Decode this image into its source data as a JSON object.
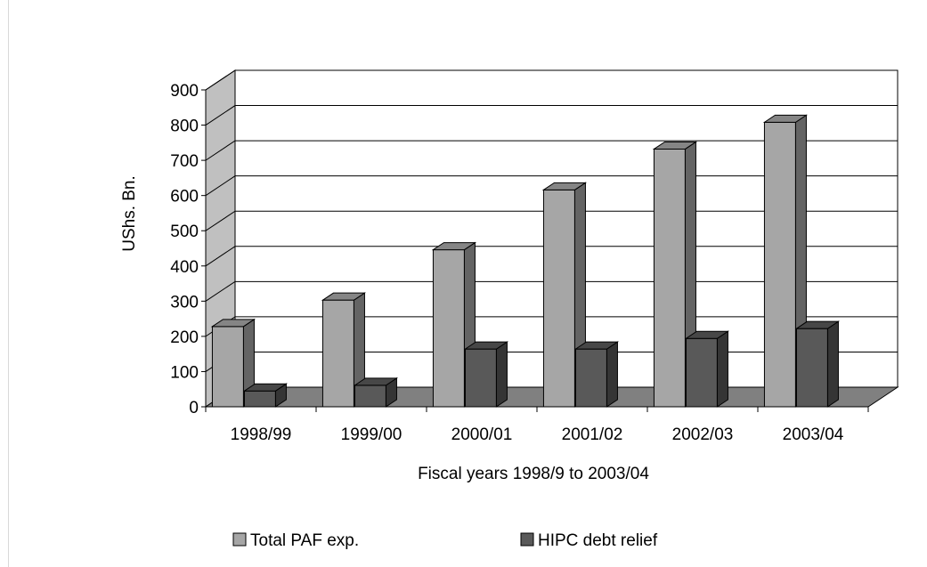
{
  "chart_data": {
    "type": "bar",
    "style": "3d-clustered-column",
    "title": "",
    "xlabel": "Fiscal years 1998/9 to 2003/04",
    "ylabel": "UShs. Bn.",
    "ylim": [
      0,
      900
    ],
    "yticks": [
      "0",
      "100",
      "200",
      "300",
      "400",
      "500",
      "600",
      "700",
      "800",
      "900"
    ],
    "categories": [
      "1998/99",
      "1999/00",
      "2000/01",
      "2001/02",
      "2002/03",
      "2003/04"
    ],
    "series": [
      {
        "name": "Total PAF exp.",
        "values": [
          228,
          303,
          446,
          616,
          732,
          808
        ],
        "color": "#a6a6a6"
      },
      {
        "name": "HIPC debt relief",
        "values": [
          45,
          61,
          164,
          164,
          194,
          222
        ],
        "color": "#595959"
      }
    ],
    "grid": true,
    "legend_position": "bottom"
  }
}
